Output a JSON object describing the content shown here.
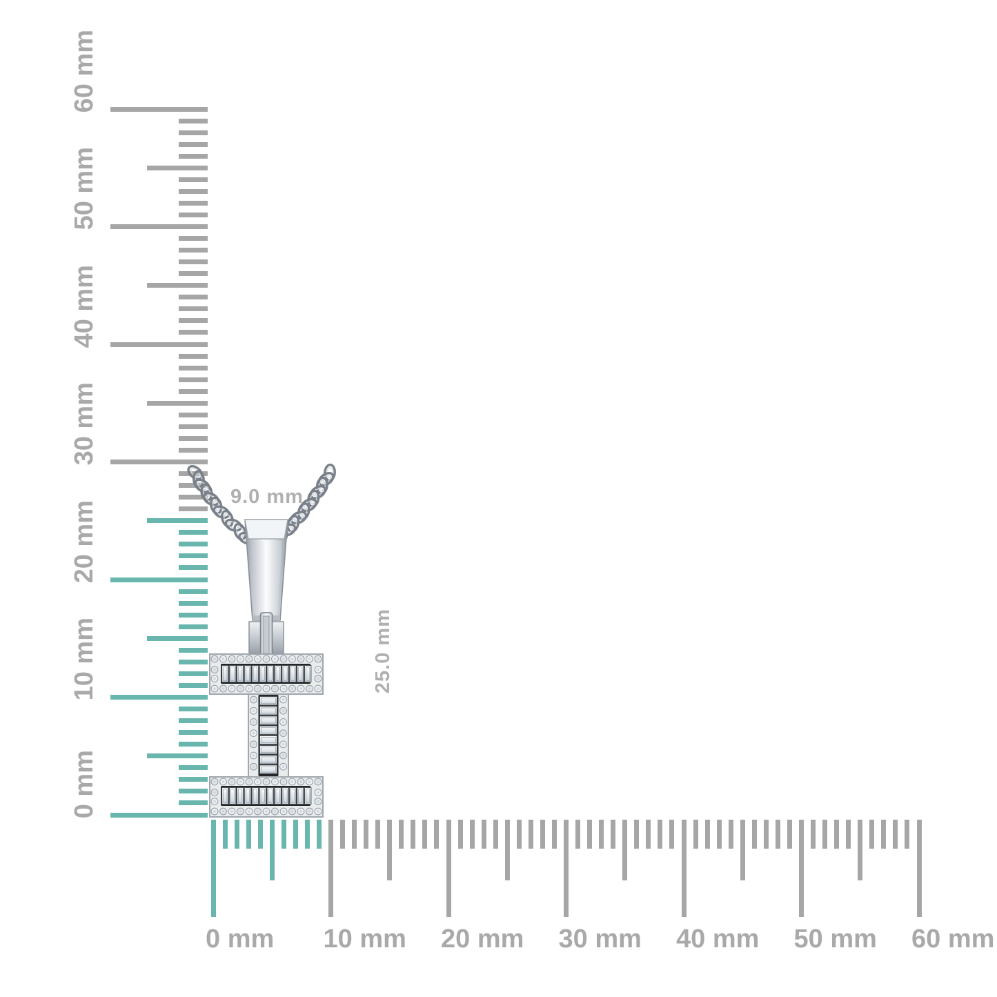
{
  "figure": {
    "kind": "jewelry size reference image",
    "subject": "letter-I initial pendant with pave and baguette diamonds on a curb chain"
  },
  "annotations": {
    "width_label": "9.0 mm",
    "height_label": "25.0 mm"
  },
  "pendant": {
    "letter": "I"
  },
  "rulers": {
    "unit": "mm",
    "vertical": {
      "min": 0,
      "max": 60,
      "minor_step_mm": 1,
      "medium_step_mm": 5,
      "major_step_mm": 10,
      "labels": [
        "0 mm",
        "10 mm",
        "20 mm",
        "30 mm",
        "40 mm",
        "50 mm",
        "60 mm"
      ],
      "highlight_to_mm": 25
    },
    "horizontal": {
      "min": 0,
      "max": 60,
      "minor_step_mm": 1,
      "medium_step_mm": 5,
      "major_step_mm": 10,
      "labels": [
        "0 mm",
        "10 mm",
        "20 mm",
        "30 mm",
        "40 mm",
        "50 mm",
        "60 mm"
      ],
      "highlight_to_mm": 9
    }
  },
  "colors": {
    "background": "#ffffff",
    "highlight_teal": "#69b6ae",
    "tick_gray": "#a6a6a6",
    "ruler_label_gray": "#a9a9a9",
    "dimension_label_gray": "#b0b0b0",
    "metal_light": "#f7f9fb",
    "metal_mid": "#c9ced4",
    "metal_dark": "#8e959d",
    "diamond_channel": "#242628"
  }
}
